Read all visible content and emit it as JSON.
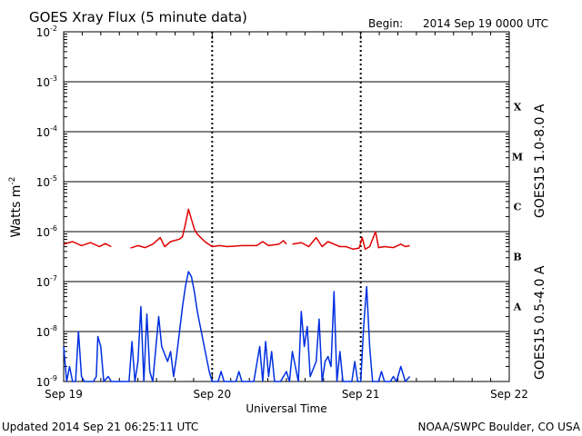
{
  "header": {
    "title": "GOES Xray Flux (5 minute data)",
    "begin_label": "Begin:",
    "begin_value": "2014 Sep 19 0000 UTC"
  },
  "footer": {
    "updated": "Updated 2014 Sep 21 06:25:11 UTC",
    "credit": "NOAA/SWPC Boulder, CO USA"
  },
  "chart_data": {
    "type": "line",
    "title": "GOES Xray Flux (5 minute data)",
    "xlabel": "Universal Time",
    "ylabel": "Watts m",
    "ylabel_sup": "-2",
    "yscale": "log",
    "ylim": [
      1e-09,
      0.01
    ],
    "xlim_days": [
      0,
      3
    ],
    "x_ticks": [
      "Sep 19",
      "Sep 20",
      "Sep 21",
      "Sep 22"
    ],
    "y_ticks": [
      {
        "base": "10",
        "exp": "-2"
      },
      {
        "base": "10",
        "exp": "-3"
      },
      {
        "base": "10",
        "exp": "-4"
      },
      {
        "base": "10",
        "exp": "-5"
      },
      {
        "base": "10",
        "exp": "-6"
      },
      {
        "base": "10",
        "exp": "-7"
      },
      {
        "base": "10",
        "exp": "-8"
      },
      {
        "base": "10",
        "exp": "-9"
      }
    ],
    "grid_horizontal": true,
    "flare_classes": [
      {
        "label": "X",
        "log_center": -3.5
      },
      {
        "label": "M",
        "log_center": -4.5
      },
      {
        "label": "C",
        "log_center": -5.5
      },
      {
        "label": "B",
        "log_center": -6.5
      },
      {
        "label": "A",
        "log_center": -7.5
      }
    ],
    "series": [
      {
        "name": "GOES15 1.0-8.0 A",
        "color": "#e00000",
        "points": [
          [
            0.0,
            -6.25
          ],
          [
            0.06,
            -6.2
          ],
          [
            0.12,
            -6.28
          ],
          [
            0.18,
            -6.22
          ],
          [
            0.24,
            -6.3
          ],
          [
            0.28,
            -6.24
          ],
          [
            0.32,
            -6.3
          ],
          [
            0.34,
            null
          ],
          [
            0.45,
            -6.33
          ],
          [
            0.5,
            -6.28
          ],
          [
            0.55,
            -6.32
          ],
          [
            0.6,
            -6.25
          ],
          [
            0.65,
            -6.12
          ],
          [
            0.68,
            -6.3
          ],
          [
            0.72,
            -6.2
          ],
          [
            0.78,
            -6.15
          ],
          [
            0.8,
            -6.1
          ],
          [
            0.82,
            -5.85
          ],
          [
            0.84,
            -5.55
          ],
          [
            0.86,
            -5.75
          ],
          [
            0.88,
            -5.95
          ],
          [
            0.9,
            -6.05
          ],
          [
            0.95,
            -6.2
          ],
          [
            1.0,
            -6.3
          ],
          [
            1.05,
            -6.28
          ],
          [
            1.1,
            -6.3
          ],
          [
            1.2,
            -6.28
          ],
          [
            1.3,
            -6.28
          ],
          [
            1.34,
            -6.2
          ],
          [
            1.38,
            -6.28
          ],
          [
            1.45,
            -6.25
          ],
          [
            1.48,
            -6.18
          ],
          [
            1.5,
            -6.25
          ],
          [
            1.51,
            null
          ],
          [
            1.54,
            -6.25
          ],
          [
            1.6,
            -6.22
          ],
          [
            1.65,
            -6.3
          ],
          [
            1.7,
            -6.12
          ],
          [
            1.74,
            -6.3
          ],
          [
            1.78,
            -6.2
          ],
          [
            1.82,
            -6.25
          ],
          [
            1.86,
            -6.3
          ],
          [
            1.9,
            -6.3
          ],
          [
            1.95,
            -6.35
          ],
          [
            1.99,
            -6.33
          ],
          [
            2.01,
            -6.12
          ],
          [
            2.03,
            -6.35
          ],
          [
            2.06,
            -6.3
          ],
          [
            2.1,
            -6.0
          ],
          [
            2.12,
            -6.32
          ],
          [
            2.16,
            -6.3
          ],
          [
            2.22,
            -6.32
          ],
          [
            2.27,
            -6.25
          ],
          [
            2.3,
            -6.3
          ],
          [
            2.33,
            -6.28
          ]
        ]
      },
      {
        "name": "GOES15 0.5-4.0 A",
        "color": "#0030e0",
        "points": [
          [
            0.0,
            -8.3
          ],
          [
            0.02,
            -9.0
          ],
          [
            0.04,
            -8.7
          ],
          [
            0.06,
            -9.0
          ],
          [
            0.08,
            -9.0
          ],
          [
            0.1,
            -8.0
          ],
          [
            0.12,
            -8.9
          ],
          [
            0.14,
            -9.0
          ],
          [
            0.2,
            -9.0
          ],
          [
            0.22,
            -8.9
          ],
          [
            0.23,
            -8.1
          ],
          [
            0.25,
            -8.3
          ],
          [
            0.27,
            -9.0
          ],
          [
            0.3,
            -8.9
          ],
          [
            0.32,
            -9.0
          ],
          [
            0.34,
            -9.0
          ],
          [
            0.4,
            -9.0
          ],
          [
            0.44,
            -9.0
          ],
          [
            0.46,
            -8.2
          ],
          [
            0.48,
            -9.0
          ],
          [
            0.5,
            -8.6
          ],
          [
            0.52,
            -7.5
          ],
          [
            0.54,
            -9.0
          ],
          [
            0.56,
            -7.65
          ],
          [
            0.58,
            -8.8
          ],
          [
            0.6,
            -9.0
          ],
          [
            0.64,
            -7.7
          ],
          [
            0.66,
            -8.3
          ],
          [
            0.7,
            -8.6
          ],
          [
            0.72,
            -8.4
          ],
          [
            0.74,
            -8.9
          ],
          [
            0.76,
            -8.5
          ],
          [
            0.78,
            -8.0
          ],
          [
            0.8,
            -7.5
          ],
          [
            0.82,
            -7.1
          ],
          [
            0.84,
            -6.8
          ],
          [
            0.86,
            -6.9
          ],
          [
            0.88,
            -7.2
          ],
          [
            0.9,
            -7.6
          ],
          [
            0.94,
            -8.2
          ],
          [
            0.98,
            -8.8
          ],
          [
            1.0,
            -9.0
          ],
          [
            1.02,
            -9.0
          ],
          [
            1.04,
            -9.0
          ],
          [
            1.06,
            -8.8
          ],
          [
            1.08,
            -9.0
          ],
          [
            1.12,
            -9.0
          ],
          [
            1.16,
            -9.0
          ],
          [
            1.18,
            -8.8
          ],
          [
            1.2,
            -9.0
          ],
          [
            1.24,
            -9.0
          ],
          [
            1.28,
            -9.0
          ],
          [
            1.32,
            -8.3
          ],
          [
            1.34,
            -9.0
          ],
          [
            1.36,
            -8.2
          ],
          [
            1.38,
            -8.9
          ],
          [
            1.4,
            -8.4
          ],
          [
            1.42,
            -9.0
          ],
          [
            1.46,
            -9.0
          ],
          [
            1.5,
            -8.8
          ],
          [
            1.52,
            -9.0
          ],
          [
            1.54,
            -8.4
          ],
          [
            1.58,
            -9.0
          ],
          [
            1.6,
            -7.6
          ],
          [
            1.62,
            -8.3
          ],
          [
            1.64,
            -7.9
          ],
          [
            1.66,
            -8.9
          ],
          [
            1.7,
            -8.6
          ],
          [
            1.72,
            -7.75
          ],
          [
            1.74,
            -9.0
          ],
          [
            1.76,
            -8.6
          ],
          [
            1.78,
            -8.5
          ],
          [
            1.8,
            -8.7
          ],
          [
            1.82,
            -7.2
          ],
          [
            1.84,
            -9.0
          ],
          [
            1.86,
            -8.4
          ],
          [
            1.88,
            -9.0
          ],
          [
            1.9,
            -9.0
          ],
          [
            1.94,
            -9.0
          ],
          [
            1.96,
            -8.6
          ],
          [
            1.98,
            -9.0
          ],
          [
            2.0,
            -9.0
          ],
          [
            2.02,
            -7.9
          ],
          [
            2.04,
            -7.1
          ],
          [
            2.06,
            -8.3
          ],
          [
            2.08,
            -9.0
          ],
          [
            2.12,
            -9.0
          ],
          [
            2.14,
            -8.8
          ],
          [
            2.16,
            -9.0
          ],
          [
            2.2,
            -9.0
          ],
          [
            2.22,
            -8.9
          ],
          [
            2.24,
            -9.0
          ],
          [
            2.27,
            -8.7
          ],
          [
            2.3,
            -9.0
          ],
          [
            2.33,
            -8.9
          ]
        ]
      }
    ]
  },
  "colors": {
    "background": "#ffffff",
    "axes": "#000000",
    "long_channel": "#e00000",
    "short_channel": "#0030e0"
  }
}
